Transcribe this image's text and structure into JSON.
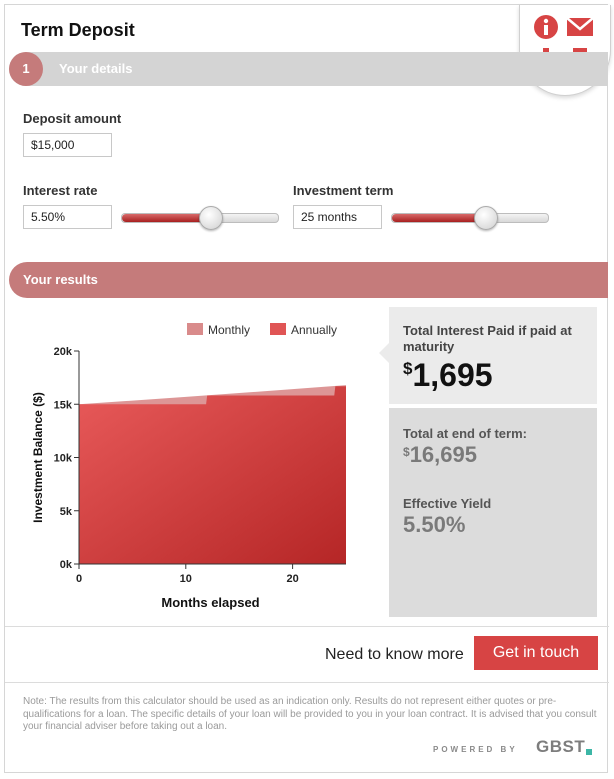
{
  "header": {
    "title": "Term Deposit"
  },
  "actions": [
    {
      "name": "info",
      "icon": "info-icon"
    },
    {
      "name": "email",
      "icon": "envelope-icon"
    },
    {
      "name": "download",
      "icon": "download-icon"
    },
    {
      "name": "print",
      "icon": "printer-icon"
    }
  ],
  "step": {
    "number": "1",
    "label": "Your details"
  },
  "form": {
    "deposit_amount": {
      "label": "Deposit amount",
      "value": "$15,000"
    },
    "interest_rate": {
      "label": "Interest rate",
      "value": "5.50%",
      "slider_fraction": 0.56
    },
    "investment_term": {
      "label": "Investment term",
      "value": "25 months",
      "slider_fraction": 0.59
    }
  },
  "results": {
    "label": "Your results",
    "total_interest_label": "Total Interest Paid if paid at maturity",
    "total_interest_currency": "$",
    "total_interest_value": "1,695",
    "total_end_label": "Total at end of term:",
    "total_end_currency": "$",
    "total_end_value": "16,695",
    "yield_label": "Effective Yield",
    "yield_value": "5.50%"
  },
  "chart_data": {
    "type": "area",
    "title": "",
    "xlabel": "Months elapsed",
    "ylabel": "Investment Balance ($)",
    "xlim": [
      0,
      25
    ],
    "ylim": [
      0,
      20000
    ],
    "x_ticks": [
      "0",
      "10",
      "20"
    ],
    "y_ticks": [
      "0k",
      "5k",
      "10k",
      "15k",
      "20k"
    ],
    "legend": {
      "placement": "top",
      "entries": [
        "Monthly",
        "Annually"
      ]
    },
    "series": [
      {
        "name": "Monthly",
        "color": "#d98b8b",
        "x": [
          0,
          5,
          10,
          15,
          20,
          25
        ],
        "values": [
          15000,
          15344,
          15695,
          16054,
          16421,
          16795
        ]
      },
      {
        "name": "Annually",
        "color": "#e05555",
        "x": [
          0,
          11.9,
          12,
          23.9,
          24,
          25
        ],
        "values": [
          15000,
          15000,
          15825,
          15825,
          16695,
          16695
        ]
      }
    ]
  },
  "cta": {
    "text": "Need to know more",
    "button": "Get in touch"
  },
  "footer": {
    "note": "Note: The results from this calculator should be used as an indication only. Results do not represent either quotes or pre-qualifications for a loan. The specific details of your loan will be provided to you in your loan contract. It is advised that you consult your financial adviser before taking out a loan.",
    "powered_by": "POWERED BY",
    "brand": "GBST"
  },
  "colors": {
    "accent": "#d74444",
    "step_pink": "#c57b7b",
    "panel_gray": "#dcdcdc"
  }
}
